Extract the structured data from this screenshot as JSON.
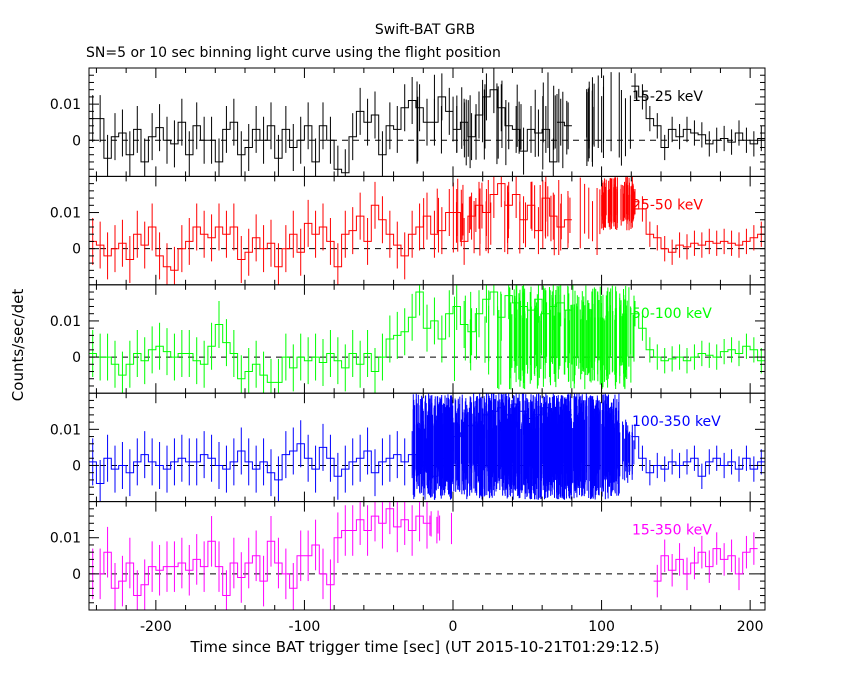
{
  "header": {
    "title": "Swift-BAT GRB",
    "subtitle": "SN=5 or 10 sec binning light curve using the flight position"
  },
  "chart_data": {
    "type": "line",
    "style": "step with error bars, five stacked panels sharing the x axis",
    "xlabel": "Time since BAT trigger time [sec] (UT 2015-10-21T01:29:12.5)",
    "ylabel": "Counts/sec/det",
    "xlim": [
      -245,
      210
    ],
    "ylim": [
      -0.01,
      0.02
    ],
    "x_ticks": [
      -200,
      -100,
      0,
      100,
      200
    ],
    "y_ticks": [
      0,
      0.01
    ],
    "y_tick_labels": [
      "0",
      "0.01"
    ],
    "zero_line": "dashed",
    "panels": [
      {
        "label": "15-25 keV",
        "color": "#000000",
        "pre": {
          "start": -245,
          "bin": 5,
          "err": 0.0065,
          "values": [
            0.006,
            0.006,
            -0.005,
            0.001,
            0.002,
            -0.004,
            0.003,
            -0.006,
            0.001,
            0.0035,
            0.0,
            -0.001,
            0.005,
            -0.004,
            0.004,
            0.0,
            0.0,
            -0.006,
            0.003,
            0.005,
            -0.004,
            -0.002,
            0.003,
            0.0,
            0.004,
            -0.005,
            0.003,
            -0.002,
            0.0,
            0.004,
            -0.006,
            0.004,
            0.0,
            -0.008,
            -0.009,
            0.001,
            0.008,
            0.005,
            0.007,
            -0.004,
            0.004,
            0.003,
            0.009,
            0.011,
            0.009,
            0.005,
            0.005,
            0.012,
            0.008,
            0.003,
            0.005,
            0.001,
            0.007,
            0.012,
            0.014,
            0.009,
            0.004,
            0.003,
            -0.003,
            0.003,
            0.002,
            0.003,
            -0.006,
            0.005,
            0.004
          ]
        },
        "burst": {
          "start": -25,
          "end": 120,
          "low": -0.009,
          "high": 0.019,
          "density": 0.35
        },
        "post": {
          "start": 120,
          "bin": 5,
          "err": 0.0035,
          "values": [
            0.015,
            0.012,
            0.006,
            0.004,
            -0.002,
            0.003,
            0.001,
            0.003,
            0.002,
            0.0015,
            -0.001,
            0.0,
            0.0005,
            -0.0005,
            0.002,
            0.0,
            -0.001,
            0.0005
          ]
        }
      },
      {
        "label": "25-50 keV",
        "color": "#ff0000",
        "pre": {
          "start": -245,
          "bin": 5,
          "err": 0.0065,
          "values": [
            0.002,
            0.001,
            -0.002,
            0.0,
            0.0015,
            -0.003,
            0.004,
            0.001,
            0.006,
            -0.002,
            -0.005,
            -0.006,
            0.0,
            0.002,
            0.006,
            0.004,
            0.003,
            0.006,
            0.004,
            0.006,
            -0.003,
            -0.001,
            0.003,
            0.0,
            0.0015,
            -0.005,
            0.0,
            0.004,
            -0.001,
            0.007,
            0.004,
            0.006,
            0.002,
            -0.005,
            0.004,
            0.005,
            0.009,
            0.002,
            0.012,
            0.008,
            0.004,
            0.001,
            -0.002,
            0.004,
            0.006,
            0.009,
            0.004,
            0.005,
            0.01,
            0.01,
            0.002,
            0.009,
            0.012,
            0.01,
            0.015,
            0.018,
            0.012,
            0.015,
            0.008,
            0.012,
            0.005,
            0.014,
            0.009,
            0.006,
            0.008
          ]
        },
        "burst": {
          "start": -25,
          "end": 100,
          "low": -0.002,
          "high": 0.02,
          "density": 0.35
        },
        "burst2": {
          "start": 100,
          "end": 122,
          "low": 0.005,
          "high": 0.02,
          "density": 3.5
        },
        "post": {
          "start": 120,
          "bin": 5,
          "err": 0.0035,
          "values": [
            0.013,
            0.011,
            0.004,
            0.003,
            0.0,
            -0.001,
            0.001,
            0.0005,
            0.0015,
            0.001,
            0.002,
            0.0015,
            0.002,
            0.0015,
            0.001,
            0.002,
            0.003,
            0.004
          ]
        }
      },
      {
        "label": "50-100 keV",
        "color": "#00ff00",
        "pre": {
          "start": -245,
          "bin": 5,
          "err": 0.0065,
          "values": [
            0.001,
            0.0,
            0.0,
            -0.002,
            -0.005,
            -0.002,
            0.001,
            -0.001,
            0.002,
            0.003,
            0.0015,
            0.0,
            0.001,
            0.001,
            -0.001,
            -0.002,
            0.003,
            0.009,
            0.004,
            0.001,
            -0.006,
            -0.004,
            -0.002,
            -0.005,
            -0.007,
            -0.007,
            0.0,
            -0.003,
            0.0,
            -0.001,
            0.0,
            -0.0015,
            0.001,
            -0.001,
            -0.003,
            0.001,
            -0.002,
            0.001,
            -0.004,
            0.0,
            0.005,
            0.006,
            0.007,
            0.011,
            0.018,
            0.008,
            0.01,
            0.005,
            0.012,
            0.014,
            0.009,
            0.007,
            0.012,
            0.016,
            0.018,
            0.011,
            0.017,
            0.015,
            0.014,
            0.013,
            0.016,
            0.012,
            0.014,
            0.015,
            0.013
          ]
        },
        "burst": {
          "start": 0,
          "end": 38,
          "low": -0.01,
          "high": 0.02,
          "density": 0.3
        },
        "burst2": {
          "start": 38,
          "end": 122,
          "low": -0.009,
          "high": 0.02,
          "density": 2.2
        },
        "post": {
          "start": 120,
          "bin": 5,
          "err": 0.0035,
          "values": [
            0.012,
            0.008,
            0.002,
            0.0,
            -0.001,
            -0.0005,
            0.0,
            -0.001,
            0.0,
            0.001,
            0.0005,
            0.0,
            0.0015,
            0.002,
            0.001,
            0.003,
            0.002,
            -0.001
          ]
        }
      },
      {
        "label": "100-350 keV",
        "color": "#0000ff",
        "pre": {
          "start": -245,
          "bin": 5,
          "err": 0.0065,
          "values": [
            0.001,
            -0.005,
            0.002,
            -0.001,
            0.0,
            -0.002,
            0.001,
            0.003,
            0.001,
            0.0,
            -0.001,
            0.001,
            0.002,
            0.001,
            0.001,
            0.003,
            0.002,
            0.0,
            -0.001,
            0.001,
            0.004,
            0.001,
            -0.001,
            0.001,
            -0.002,
            -0.004,
            0.003,
            0.004,
            0.006,
            0.002,
            -0.001,
            0.005,
            0.002,
            -0.003,
            -0.001,
            0.001,
            0.002,
            0.004,
            -0.002,
            0.001,
            0.002,
            0.003,
            0.001,
            0.003,
            -0.001,
            0.001,
            -0.003,
            0.002,
            0.004,
            0.008,
            0.009,
            0.011,
            0.012,
            0.014,
            0.015,
            0.016,
            0.014,
            0.017,
            0.015,
            0.013,
            0.014,
            0.016,
            0.015,
            0.012,
            0.014
          ]
        },
        "burst": {
          "start": -27,
          "end": 112,
          "low": -0.0095,
          "high": 0.02,
          "density": 6
        },
        "burst2": {
          "start": 112,
          "end": 122,
          "low": -0.005,
          "high": 0.013,
          "density": 2
        },
        "post": {
          "start": 120,
          "bin": 5,
          "err": 0.0035,
          "values": [
            0.008,
            0.002,
            -0.002,
            0.0,
            -0.001,
            0.001,
            0.0,
            0.001,
            0.002,
            -0.003,
            0.001,
            0.002,
            0.0,
            0.001,
            -0.001,
            0.002,
            -0.001,
            0.001
          ]
        }
      },
      {
        "label": "15-350 keV",
        "color": "#ff00ff",
        "pre": {
          "start": -245,
          "bin": 5,
          "err": 0.007,
          "values": [
            0.0,
            0.0,
            0.006,
            -0.004,
            -0.002,
            0.003,
            -0.006,
            -0.003,
            0.002,
            0.001,
            0.002,
            0.002,
            0.003,
            0.001,
            0.004,
            0.002,
            0.009,
            0.002,
            -0.006,
            0.003,
            -0.001,
            0.003,
            0.005,
            -0.002,
            0.009,
            0.003,
            0.0,
            -0.004,
            0.005,
            0.005,
            0.008,
            0.0,
            -0.003,
            0.01,
            0.012,
            0.012,
            0.015,
            0.012,
            0.016,
            0.014,
            0.018,
            0.013,
            0.015,
            0.012,
            0.016,
            0.014
          ]
        },
        "burst": {
          "start": -20,
          "end": 0,
          "low": 0.008,
          "high": 0.019,
          "density": 0.3
        },
        "post": {
          "start": 135,
          "bin": 5,
          "err": 0.0045,
          "values": [
            -0.002,
            0.005,
            0.001,
            0.004,
            0.0,
            0.003,
            0.006,
            0.002,
            0.007,
            0.004,
            0.005,
            0.0,
            0.006,
            0.007
          ]
        }
      }
    ]
  }
}
